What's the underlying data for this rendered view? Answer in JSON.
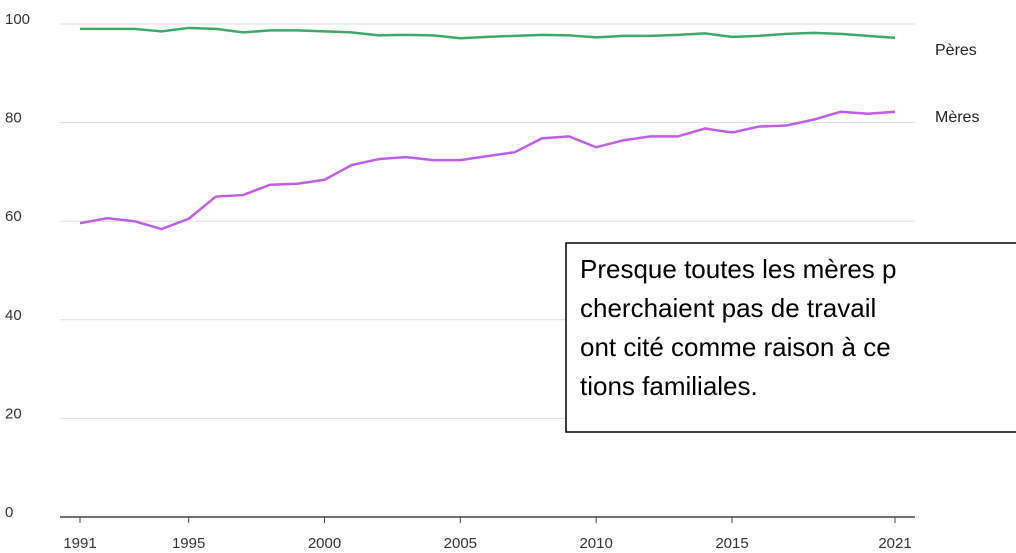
{
  "chart_data": {
    "type": "line",
    "x": [
      1991,
      1992,
      1993,
      1994,
      1995,
      1996,
      1997,
      1998,
      1999,
      2000,
      2001,
      2002,
      2003,
      2004,
      2005,
      2006,
      2007,
      2008,
      2009,
      2010,
      2011,
      2012,
      2013,
      2014,
      2015,
      2016,
      2017,
      2018,
      2019,
      2020,
      2021
    ],
    "series": [
      {
        "name": "Pères",
        "color": "#3daa6a",
        "values": [
          99,
          99,
          99,
          98.5,
          99.2,
          99,
          98.3,
          98.7,
          98.7,
          98.5,
          98.3,
          97.7,
          97.8,
          97.7,
          97.1,
          97.4,
          97.6,
          97.8,
          97.7,
          97.3,
          97.6,
          97.6,
          97.8,
          98.1,
          97.4,
          97.6,
          98,
          98.2,
          98,
          97.6,
          97.2
        ]
      },
      {
        "name": "Mères",
        "color": "#c05ee8",
        "values": [
          59.6,
          60.6,
          60,
          58.4,
          60.5,
          65,
          65.3,
          67.4,
          67.6,
          68.4,
          71.4,
          72.6,
          73,
          72.4,
          72.4,
          73.2,
          74,
          76.8,
          77.2,
          75,
          76.4,
          77.2,
          77.2,
          78.8,
          78,
          79.2,
          79.4,
          80.6,
          82.2,
          81.8,
          82.2
        ]
      }
    ],
    "xlim": [
      1991,
      2021
    ],
    "xticks": [
      1991,
      1995,
      2000,
      2005,
      2010,
      2015,
      2021
    ],
    "ylim": [
      0,
      100
    ],
    "yticks": [
      0,
      20,
      40,
      60,
      80,
      100
    ],
    "grid": true,
    "annotation": [
      "Presque toutes les mères p",
      "cherchaient pas de travail",
      "ont cité comme raison à ce",
      "tions familiales."
    ]
  }
}
